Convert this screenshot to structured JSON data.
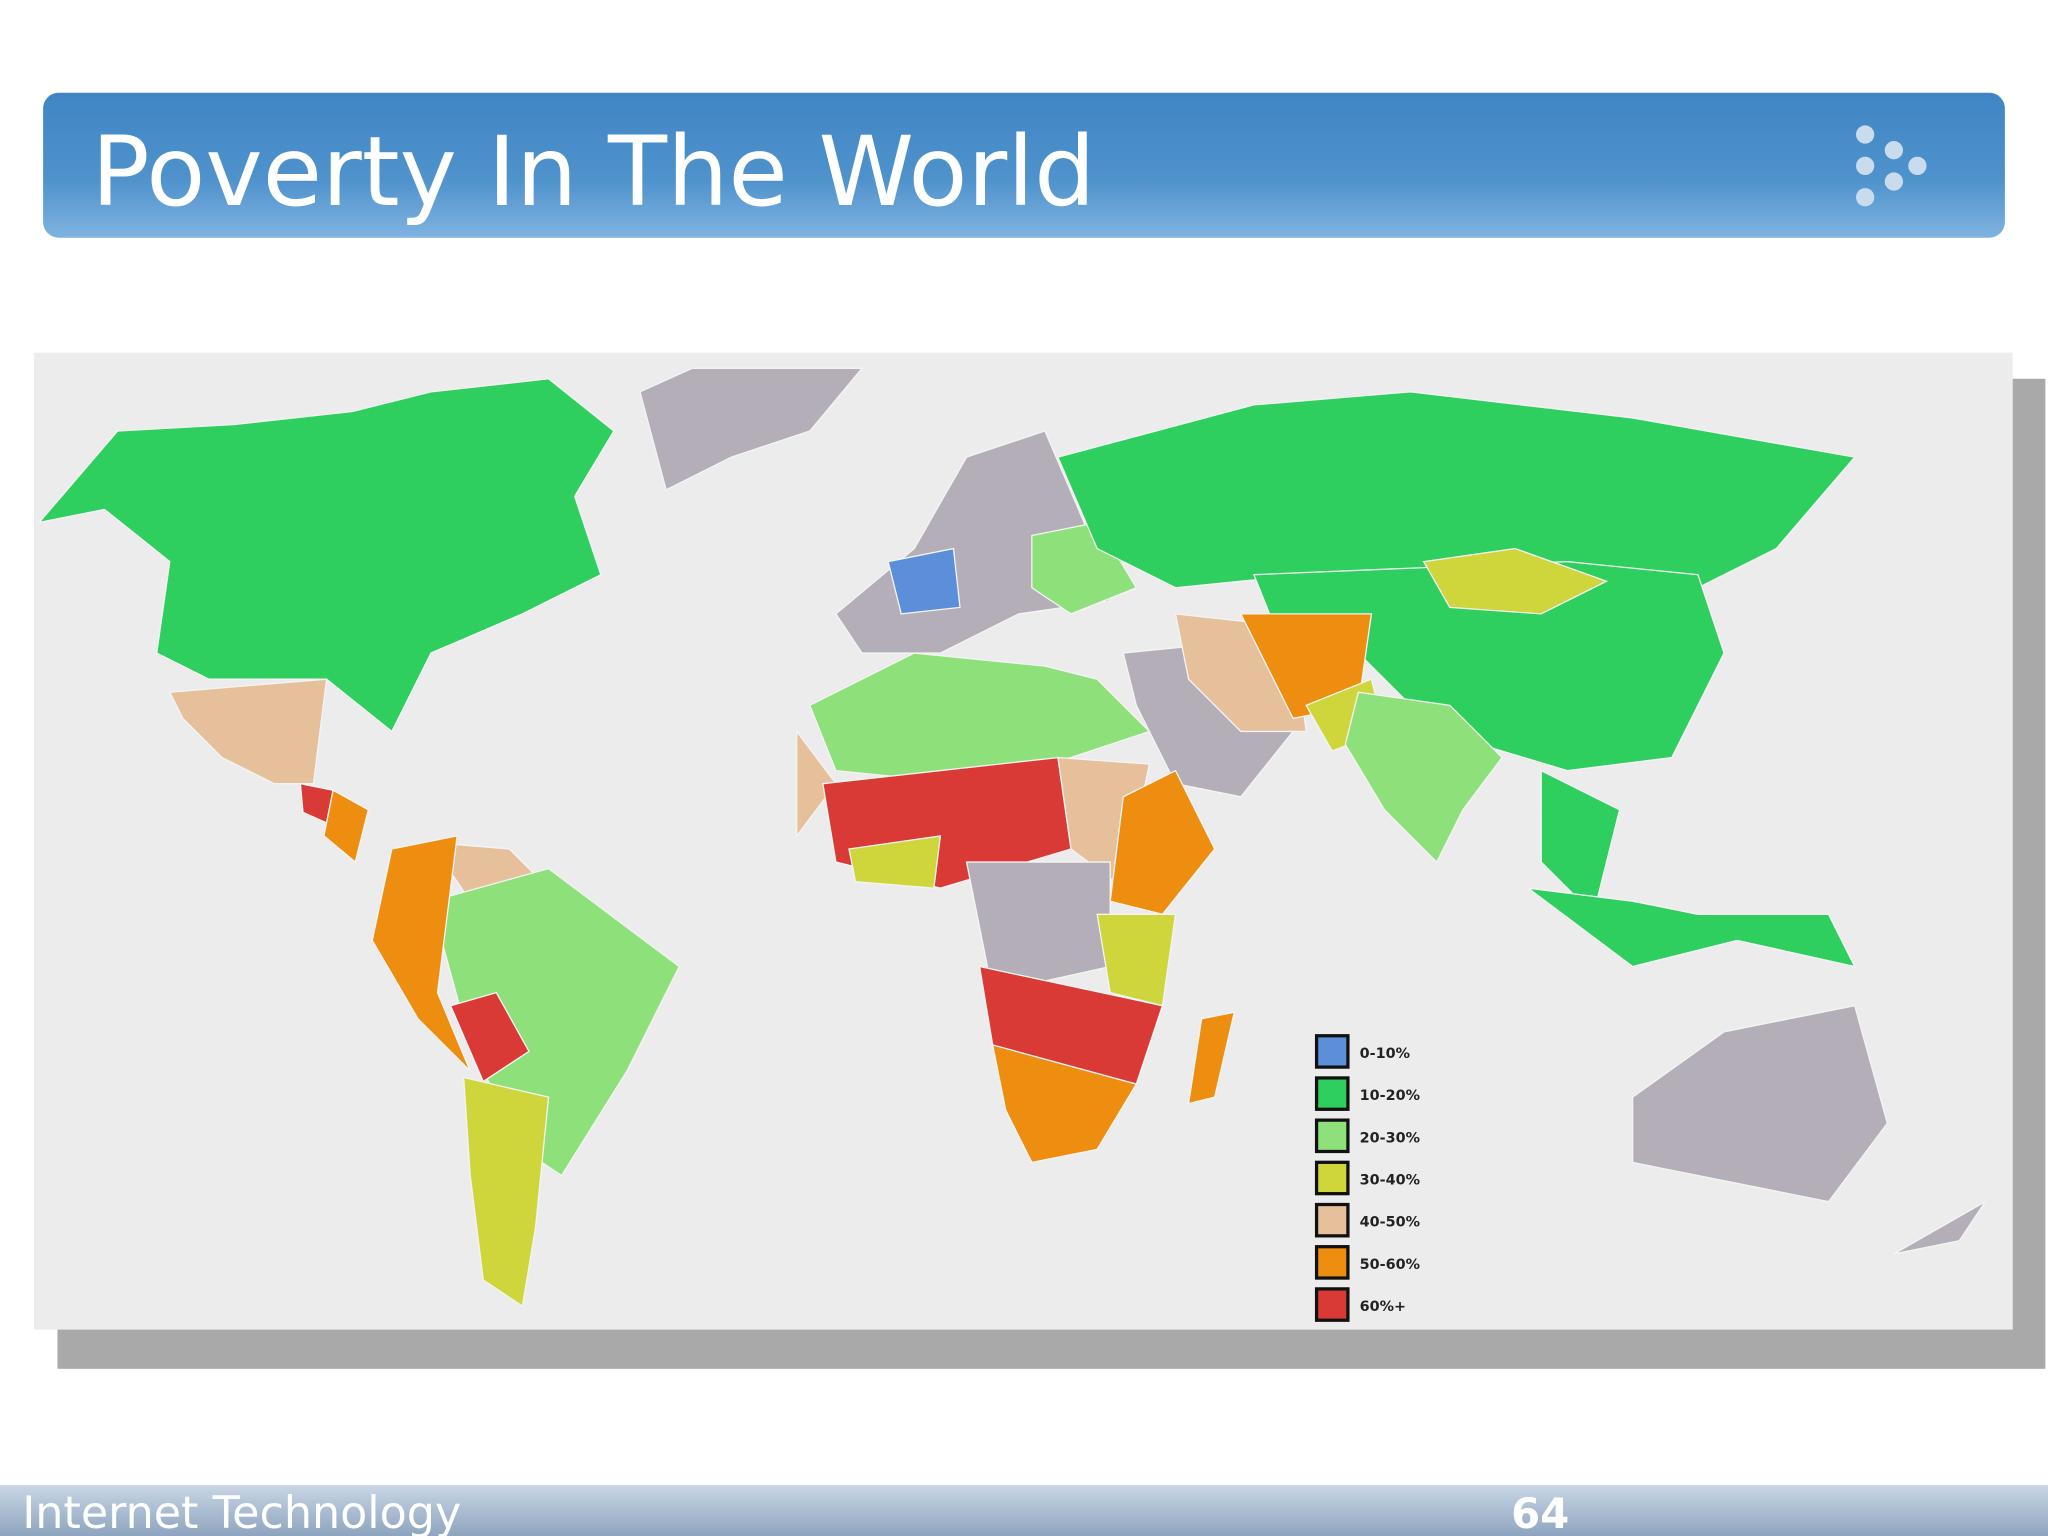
{
  "header": {
    "title": "Poverty In The World"
  },
  "map": {
    "legend": [
      {
        "label": "0-10%",
        "color": "#5b8fd9"
      },
      {
        "label": "10-20%",
        "color": "#2fcf5f"
      },
      {
        "label": "20-30%",
        "color": "#8ee07a"
      },
      {
        "label": "30-40%",
        "color": "#cfd63c"
      },
      {
        "label": "40-50%",
        "color": "#e6c09a"
      },
      {
        "label": "50-60%",
        "color": "#ee8e10"
      },
      {
        "label": "60%+",
        "color": "#d93a36"
      }
    ]
  },
  "footer": {
    "left": "Internet Technology",
    "page_number": 64
  }
}
